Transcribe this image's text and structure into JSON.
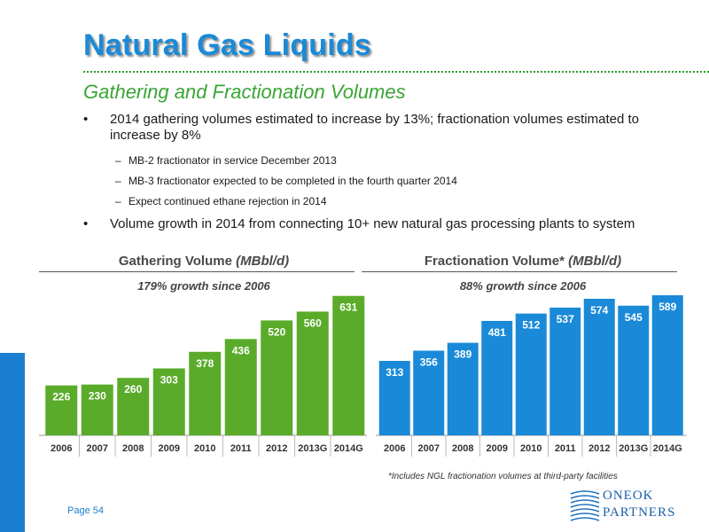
{
  "header": {
    "title": "Natural Gas Liquids",
    "subtitle": "Gathering and Fractionation Volumes"
  },
  "bullets": [
    {
      "text": "2014 gathering volumes estimated to increase by 13%; fractionation volumes estimated to increase by 8%",
      "subs": [
        "MB-2 fractionator in service December 2013",
        "MB-3 fractionator expected to be completed in the fourth quarter 2014",
        "Expect continued ethane rejection in 2014"
      ]
    },
    {
      "text": "Volume growth in 2014 from connecting 10+ new natural gas processing plants to system",
      "subs": []
    }
  ],
  "bullet_marker": "•",
  "dash_marker": "–",
  "chart_data": [
    {
      "type": "bar",
      "title": "Gathering Volume",
      "unit": "(MBbl/d)",
      "subtitle": "179% growth since 2006",
      "categories": [
        "2006",
        "2007",
        "2008",
        "2009",
        "2010",
        "2011",
        "2012",
        "2013G",
        "2014G"
      ],
      "values": [
        226,
        230,
        260,
        303,
        378,
        436,
        520,
        560,
        631
      ],
      "bar_color": "#5aab2a",
      "ylim": [
        0,
        650
      ],
      "grid": false,
      "data_labels": true
    },
    {
      "type": "bar",
      "title": "Fractionation Volume*",
      "unit": "(MBbl/d)",
      "subtitle": "88% growth since 2006",
      "categories": [
        "2006",
        "2007",
        "2008",
        "2009",
        "2010",
        "2011",
        "2012",
        "2013G",
        "2014G"
      ],
      "values": [
        313,
        356,
        389,
        481,
        512,
        537,
        574,
        545,
        589
      ],
      "bar_color": "#1a8ad8",
      "ylim": [
        0,
        600
      ],
      "grid": false,
      "data_labels": true
    }
  ],
  "footnote": "*Includes NGL fractionation volumes at third-party facilities",
  "footer": {
    "page": "Page 54",
    "logo_line1": "ONEOK",
    "logo_line2": "PARTNERS"
  },
  "colors": {
    "title": "#1a8ad8",
    "subtitle": "#3aa535",
    "accent_bar": "#1a7fd0"
  }
}
